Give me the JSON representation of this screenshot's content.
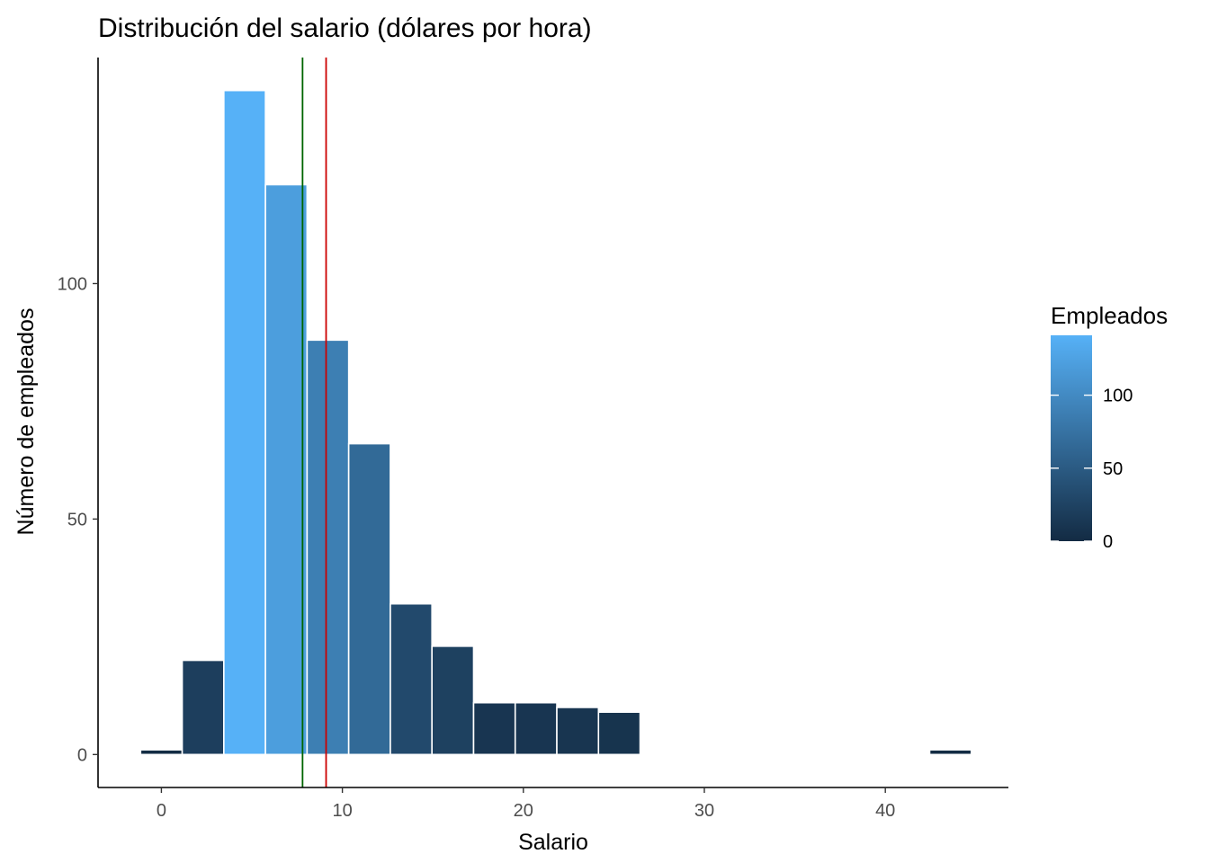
{
  "chart_data": {
    "type": "bar",
    "title": "Distribución del salario (dólares por hora)",
    "xlabel": "Salario",
    "ylabel": "Número de empleados",
    "xlim": [
      -3.5,
      46.8
    ],
    "ylim": [
      -7,
      148
    ],
    "xticks": [
      0,
      10,
      20,
      30,
      40
    ],
    "yticks": [
      0,
      50,
      100
    ],
    "binwidth": 2.3,
    "bins": [
      {
        "x": 0.0,
        "count": 1
      },
      {
        "x": 2.3,
        "count": 20
      },
      {
        "x": 4.6,
        "count": 141
      },
      {
        "x": 6.9,
        "count": 121
      },
      {
        "x": 9.2,
        "count": 88
      },
      {
        "x": 11.5,
        "count": 66
      },
      {
        "x": 13.8,
        "count": 32
      },
      {
        "x": 16.1,
        "count": 23
      },
      {
        "x": 18.4,
        "count": 11
      },
      {
        "x": 20.7,
        "count": 11
      },
      {
        "x": 23.0,
        "count": 10
      },
      {
        "x": 25.3,
        "count": 9
      },
      {
        "x": 43.6,
        "count": 1
      }
    ],
    "vlines": [
      {
        "x": 7.8,
        "color": "#006400"
      },
      {
        "x": 9.1,
        "color": "#cc0000"
      }
    ],
    "legend": {
      "title": "Empleados",
      "placement": "right",
      "ticks": [
        0,
        50,
        100
      ],
      "range": [
        0,
        141
      ],
      "low_color": "#132b43",
      "high_color": "#56b1f7"
    },
    "grid": false,
    "bar_outline_color": "#ffffff"
  }
}
